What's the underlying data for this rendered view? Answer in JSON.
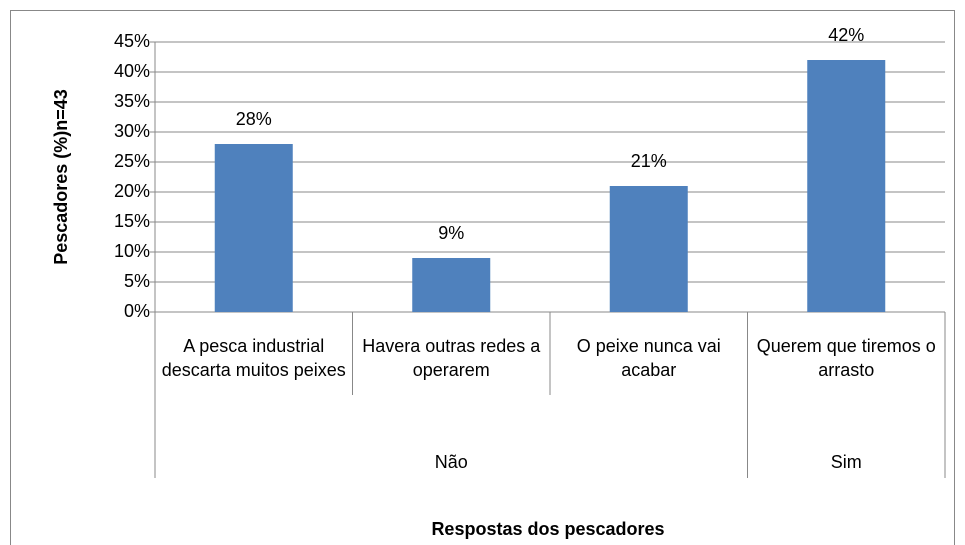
{
  "chart_data": {
    "type": "bar",
    "categories": [
      "A pesca industrial descarta muitos peixes",
      "Havera outras redes a operarem",
      "O peixe nunca vai acabar",
      "Querem que tiremos o arrasto"
    ],
    "groups": [
      {
        "label": "Não",
        "count": 3
      },
      {
        "label": "Sim",
        "count": 1
      }
    ],
    "values": [
      28,
      9,
      21,
      42
    ],
    "value_labels": [
      "28%",
      "9%",
      "21%",
      "42%"
    ],
    "color": "#4f81bd",
    "ylabel": "Pescadores (%)n=43",
    "xlabel": "Respostas dos pescadores",
    "ylim": [
      0,
      45
    ],
    "yticks": [
      {
        "value": 0,
        "label": "0%"
      },
      {
        "value": 5,
        "label": "5%"
      },
      {
        "value": 10,
        "label": "10%"
      },
      {
        "value": 15,
        "label": "15%"
      },
      {
        "value": 20,
        "label": "20%"
      },
      {
        "value": 25,
        "label": "25%"
      },
      {
        "value": 30,
        "label": "30%"
      },
      {
        "value": 35,
        "label": "35%"
      },
      {
        "value": 40,
        "label": "40%"
      },
      {
        "value": 45,
        "label": "45%"
      }
    ],
    "grid": true
  }
}
